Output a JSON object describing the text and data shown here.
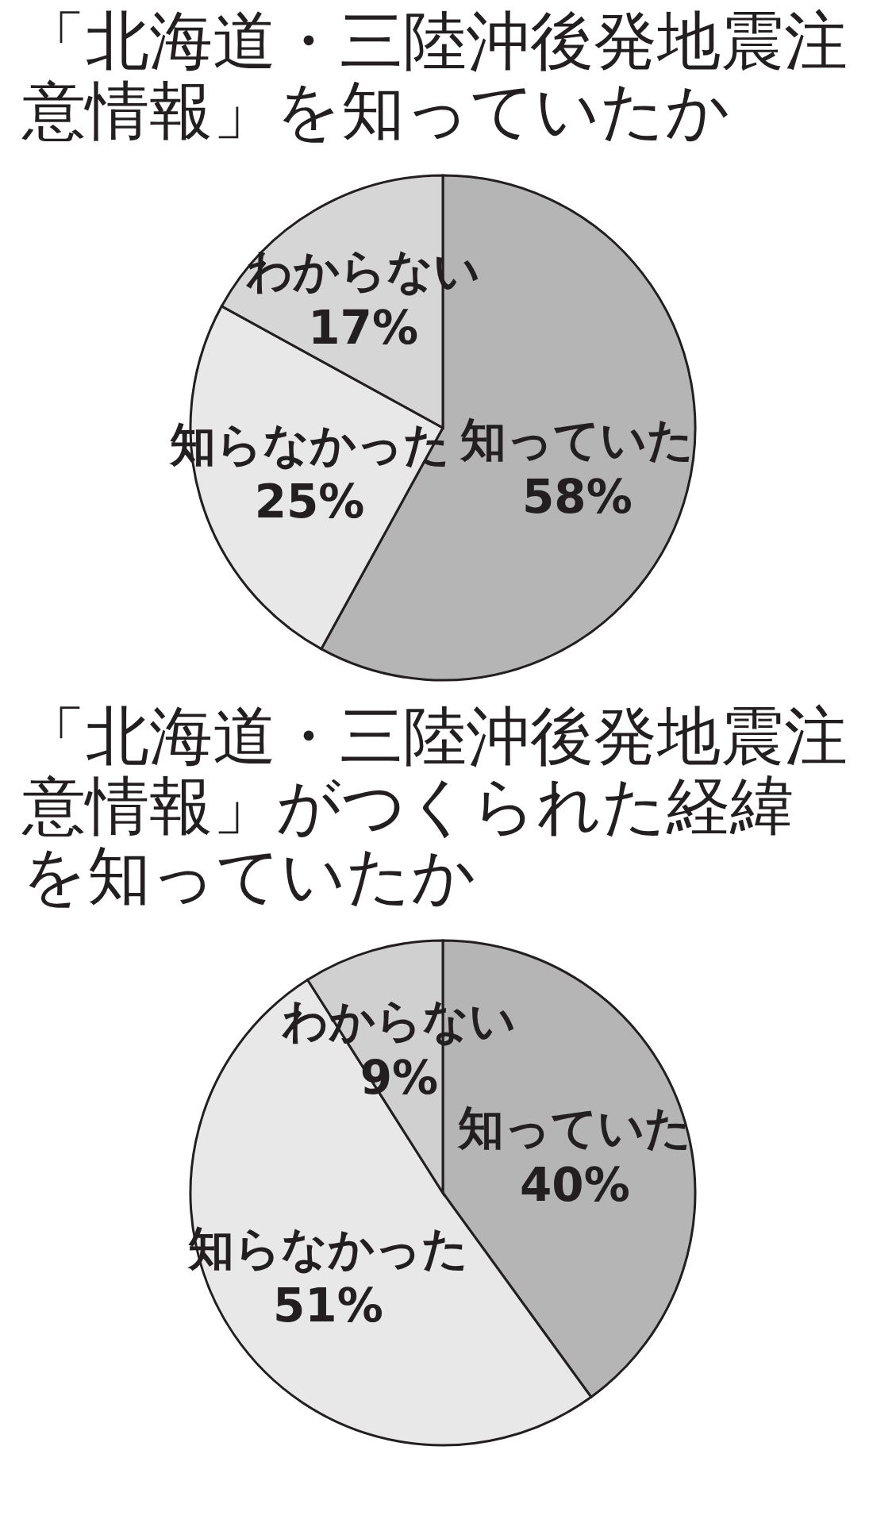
{
  "chart_data": [
    {
      "type": "pie",
      "title": "「北海道・三陸沖後発地震注意情報」を知っていたか",
      "categories": [
        "知っていた",
        "知らなかった",
        "わからない"
      ],
      "values": [
        58,
        25,
        17
      ],
      "value_labels": [
        "58%",
        "25%",
        "17%"
      ],
      "colors": [
        "#b5b5b5",
        "#e8e8e8",
        "#d6d6d6"
      ]
    },
    {
      "type": "pie",
      "title": "「北海道・三陸沖後発地震注意情報」がつくられた経緯を知っていたか",
      "categories": [
        "知っていた",
        "知らなかった",
        "わからない"
      ],
      "values": [
        40,
        51,
        9
      ],
      "value_labels": [
        "40%",
        "51%",
        "9%"
      ],
      "colors": [
        "#b5b5b5",
        "#e8e8e8",
        "#d0d0d0"
      ]
    }
  ]
}
